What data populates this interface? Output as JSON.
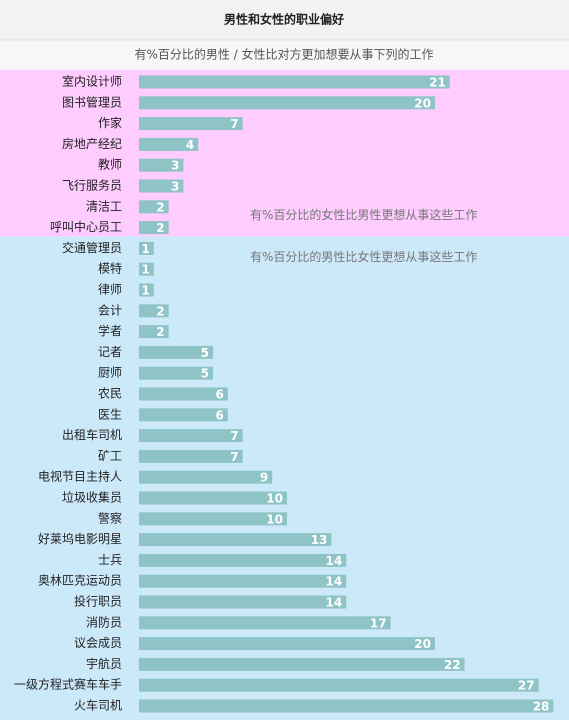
{
  "chart_data": {
    "type": "bar",
    "title": "男性和女性的职业偏好",
    "subtitle": "有%百分比的男性 / 女性比对方更加想要从事下列的工作",
    "color": "#8ec4c6",
    "groups": [
      {
        "label": "有%百分比的女性比男性更想从事这些工作",
        "background": "#ffccff",
        "categories": [
          "室内设计师",
          "图书管理员",
          "作家",
          "房地产经纪",
          "教师",
          "飞行服务员",
          "清洁工",
          "呼叫中心员工"
        ],
        "values": [
          21,
          20,
          7,
          4,
          3,
          3,
          2,
          2
        ]
      },
      {
        "label": "有%百分比的男性比女性更想从事这些工作",
        "background": "#cce9fa",
        "categories": [
          "交通管理员",
          "模特",
          "律师",
          "会计",
          "学者",
          "记者",
          "厨师",
          "农民",
          "医生",
          "出租车司机",
          "矿工",
          "电视节目主持人",
          "垃圾收集员",
          "警察",
          "好莱坞电影明星",
          "士兵",
          "奥林匹克运动员",
          "投行职员",
          "消防员",
          "议会成员",
          "宇航员",
          "一级方程式赛车车手",
          "火车司机"
        ],
        "values": [
          1,
          1,
          1,
          2,
          2,
          5,
          5,
          6,
          6,
          7,
          7,
          9,
          10,
          10,
          13,
          14,
          14,
          14,
          17,
          20,
          22,
          27,
          28
        ]
      }
    ]
  }
}
